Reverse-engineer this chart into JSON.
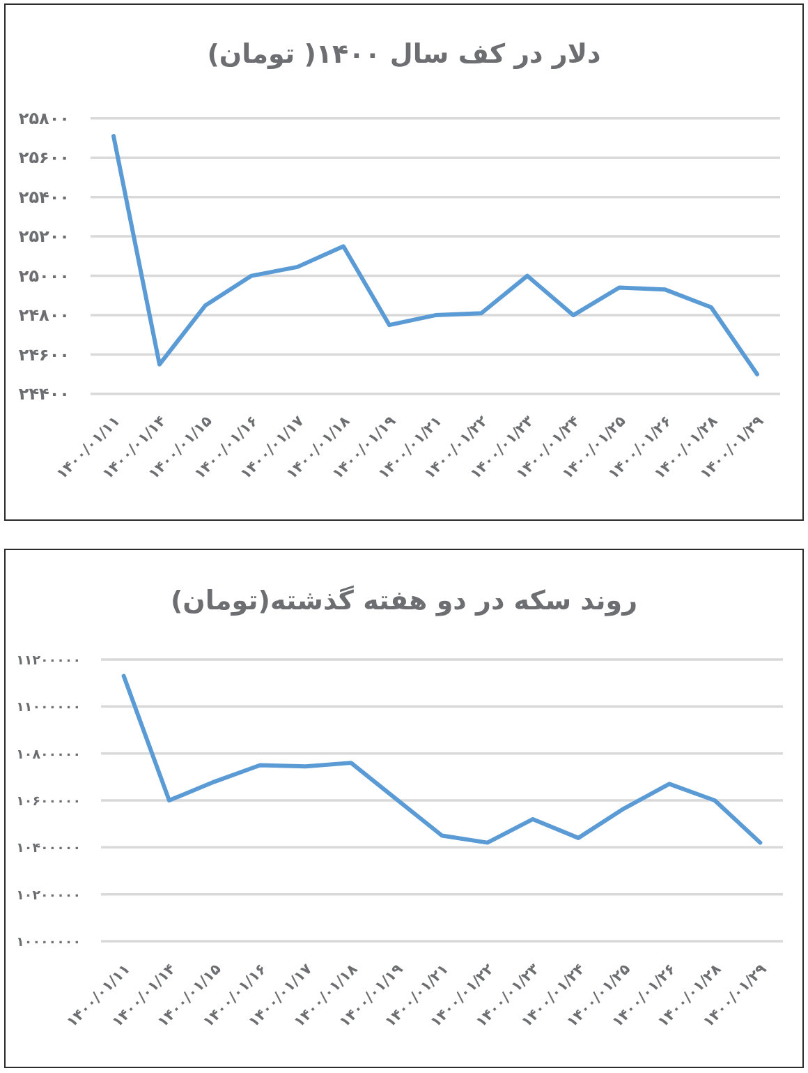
{
  "chart_data": [
    {
      "type": "line",
      "title": "دلار در کف سال ۱۴۰۰( تومان)",
      "categories": [
        "۱۴۰۰/۰۱/۱۱",
        "۱۴۰۰/۰۱/۱۴",
        "۱۴۰۰/۰۱/۱۵",
        "۱۴۰۰/۰۱/۱۶",
        "۱۴۰۰/۰۱/۱۷",
        "۱۴۰۰/۰۱/۱۸",
        "۱۴۰۰/۰۱/۱۹",
        "۱۴۰۰/۰۱/۲۱",
        "۱۴۰۰/۰۱/۲۲",
        "۱۴۰۰/۰۱/۲۳",
        "۱۴۰۰/۰۱/۲۴",
        "۱۴۰۰/۰۱/۲۵",
        "۱۴۰۰/۰۱/۲۶",
        "۱۴۰۰/۰۱/۲۸",
        "۱۴۰۰/۰۱/۲۹"
      ],
      "series": [
        {
          "color": "#5b9bd5",
          "values": [
            25710,
            24550,
            24850,
            25000,
            25045,
            25150,
            24750,
            24800,
            24810,
            25000,
            24800,
            24940,
            24930,
            24840,
            24500
          ]
        }
      ],
      "ylim": [
        24400,
        25800
      ],
      "yticks": [
        {
          "value": 24400,
          "label": "۲۴۴۰۰"
        },
        {
          "value": 24600,
          "label": "۲۴۶۰۰"
        },
        {
          "value": 24800,
          "label": "۲۴۸۰۰"
        },
        {
          "value": 25000,
          "label": "۲۵۰۰۰"
        },
        {
          "value": 25200,
          "label": "۲۵۲۰۰"
        },
        {
          "value": 25400,
          "label": "۲۵۴۰۰"
        },
        {
          "value": 25600,
          "label": "۲۵۶۰۰"
        },
        {
          "value": 25800,
          "label": "۲۵۸۰۰"
        }
      ],
      "grid": "y"
    },
    {
      "type": "line",
      "title": "روند سکه در دو هفته گذشته(تومان)",
      "categories": [
        "۱۴۰۰/۰۱/۱۱",
        "۱۴۰۰/۰۱/۱۴",
        "۱۴۰۰/۰۱/۱۵",
        "۱۴۰۰/۰۱/۱۶",
        "۱۴۰۰/۰۱/۱۷",
        "۱۴۰۰/۰۱/۱۸",
        "۱۴۰۰/۰۱/۱۹",
        "۱۴۰۰/۰۱/۲۱",
        "۱۴۰۰/۰۱/۲۲",
        "۱۴۰۰/۰۱/۲۳",
        "۱۴۰۰/۰۱/۲۴",
        "۱۴۰۰/۰۱/۲۵",
        "۱۴۰۰/۰۱/۲۶",
        "۱۴۰۰/۰۱/۲۸",
        "۱۴۰۰/۰۱/۲۹"
      ],
      "series": [
        {
          "color": "#5b9bd5",
          "values": [
            11130000,
            10600000,
            10680000,
            10750000,
            10745000,
            10760000,
            10605000,
            10450000,
            10420000,
            10520000,
            10440000,
            10565000,
            10670000,
            10600000,
            10420000
          ]
        }
      ],
      "ylim": [
        10000000,
        11200000
      ],
      "yticks": [
        {
          "value": 10000000,
          "label": "۱۰۰۰۰۰۰۰"
        },
        {
          "value": 10200000,
          "label": "۱۰۲۰۰۰۰۰"
        },
        {
          "value": 10400000,
          "label": "۱۰۴۰۰۰۰۰"
        },
        {
          "value": 10600000,
          "label": "۱۰۶۰۰۰۰۰"
        },
        {
          "value": 10800000,
          "label": "۱۰۸۰۰۰۰۰"
        },
        {
          "value": 11000000,
          "label": "۱۱۰۰۰۰۰۰"
        },
        {
          "value": 11200000,
          "label": "۱۱۲۰۰۰۰۰"
        }
      ],
      "grid": "y"
    }
  ]
}
